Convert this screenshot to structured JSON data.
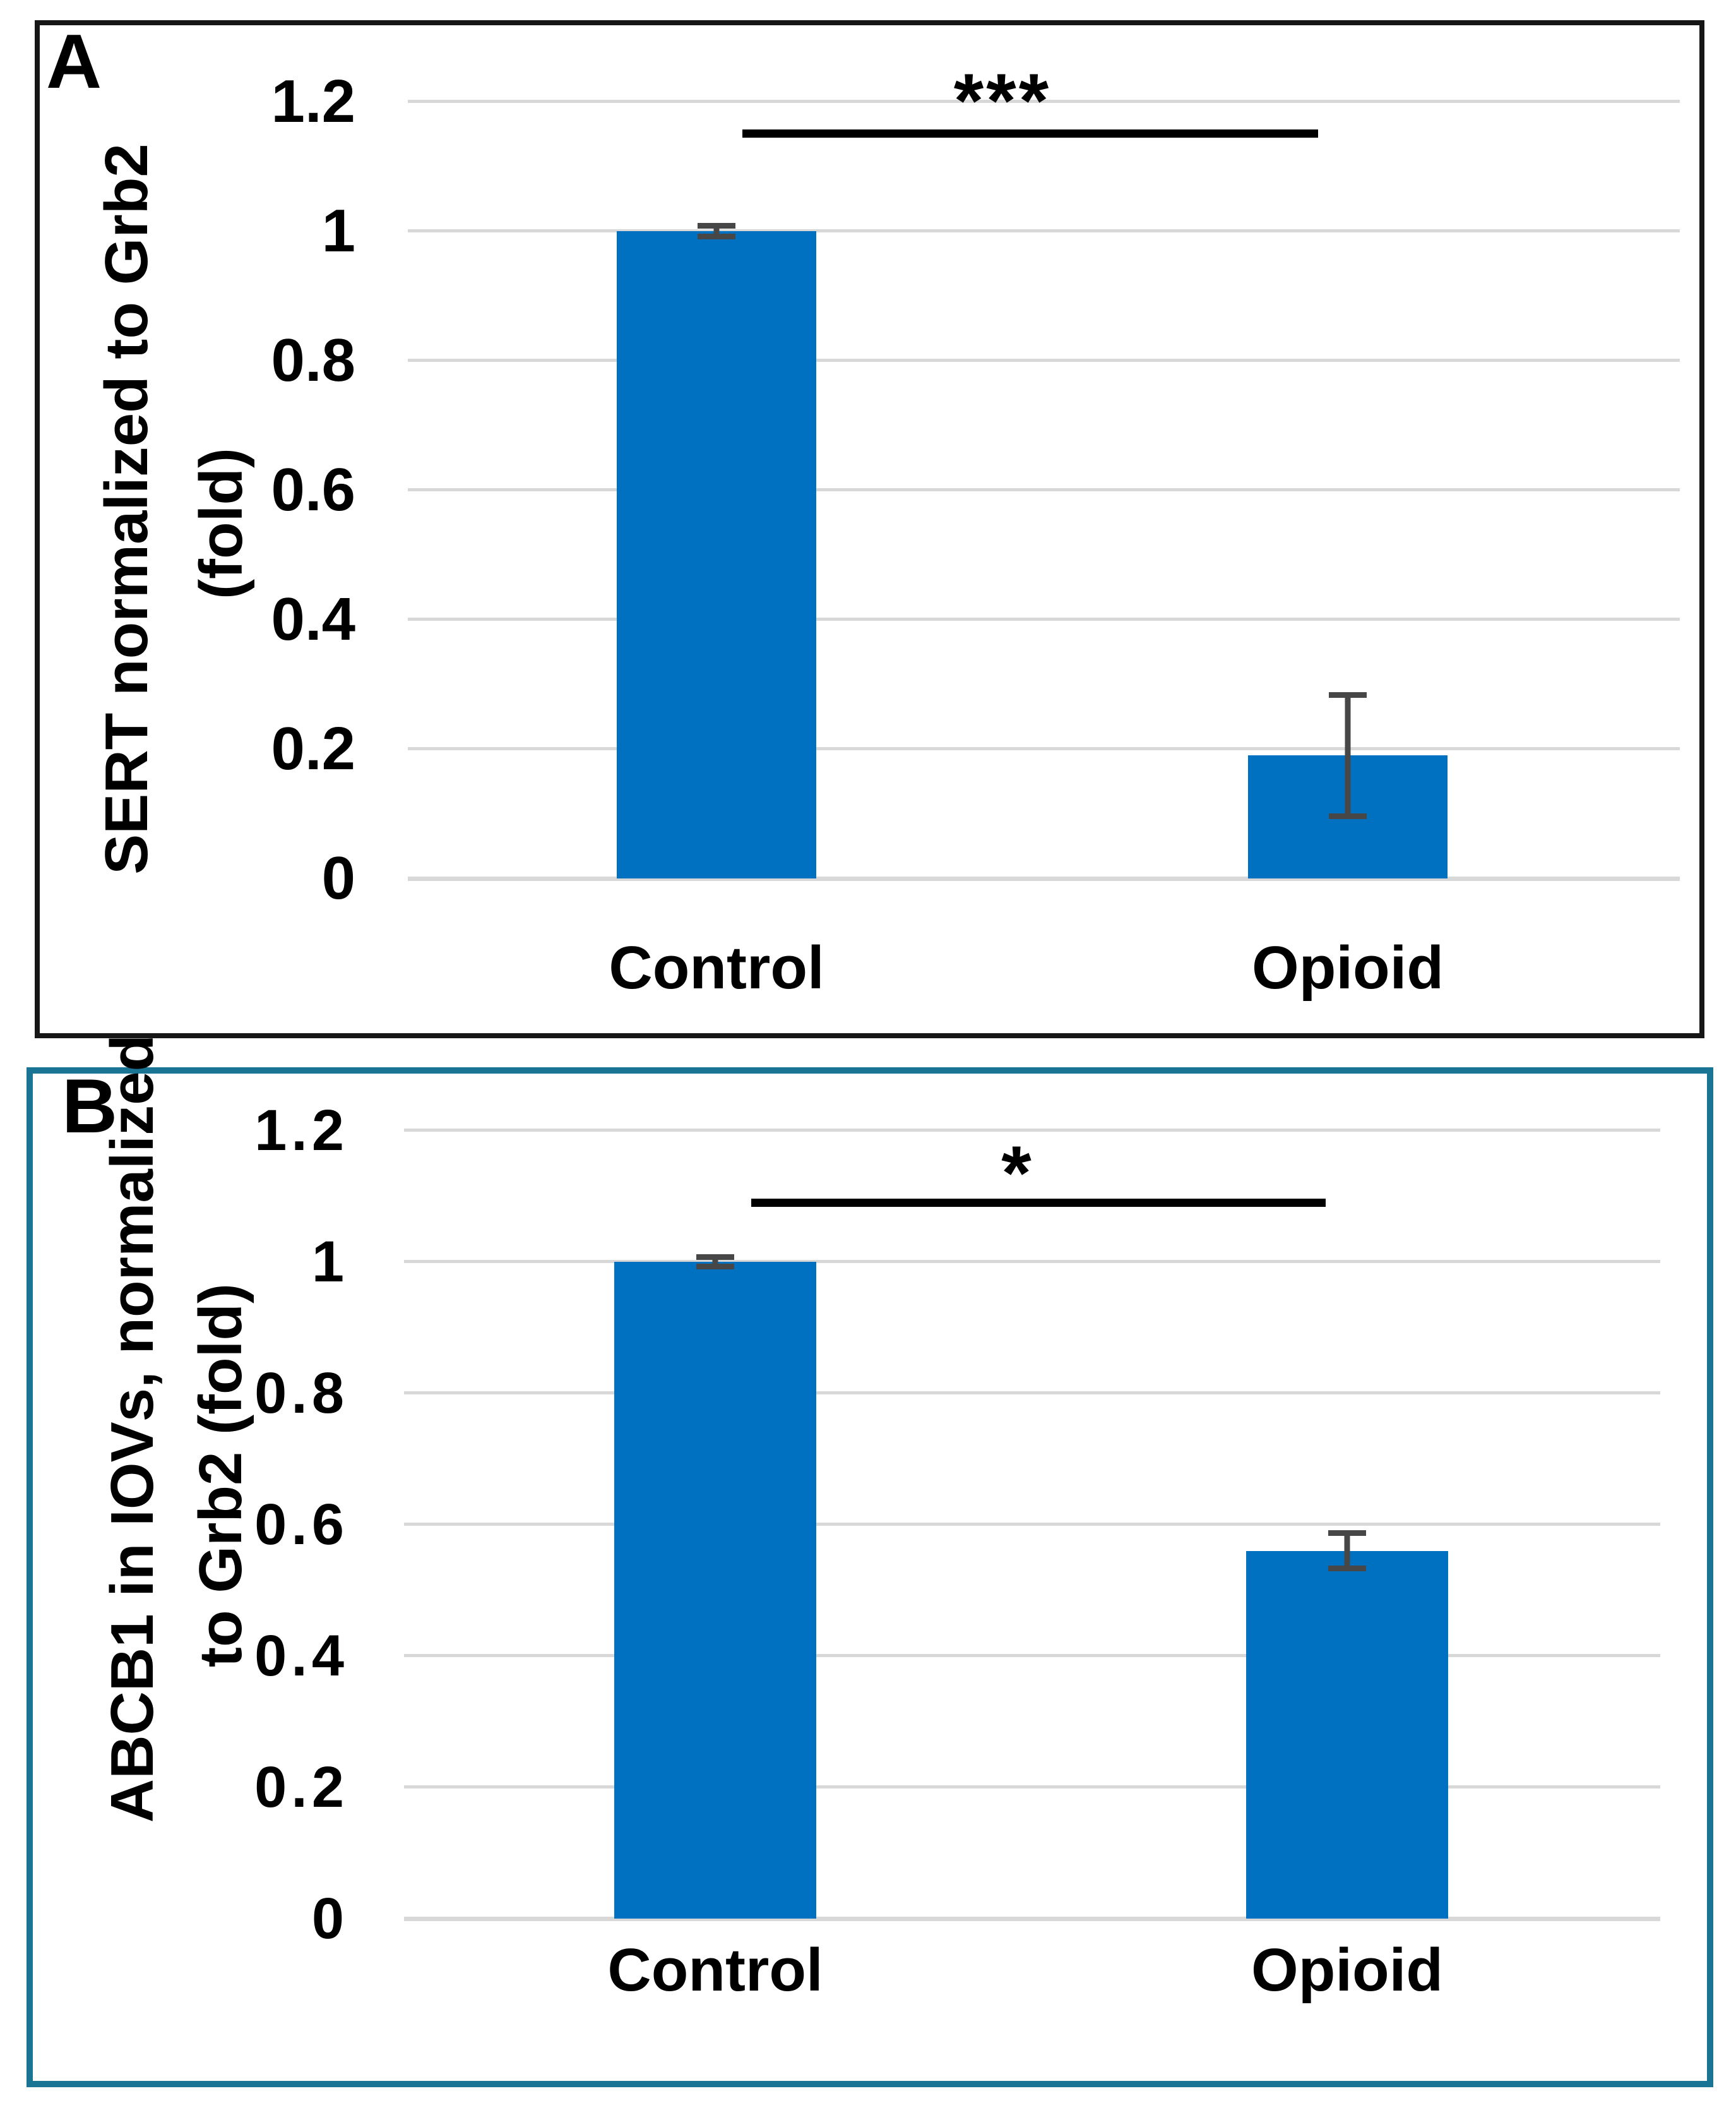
{
  "chart_data": [
    {
      "type": "bar",
      "panel_label": "A",
      "title": "",
      "ylabel_line1": "SERT normalized to Grb2",
      "ylabel_line2": "(fold)",
      "ylabel": "SERT normalized to Grb2 (fold)",
      "xlabel": "",
      "categories": [
        "Control",
        "Opioid"
      ],
      "values": [
        1.0,
        0.19
      ],
      "errors": [
        0.013,
        0.098
      ],
      "yticks": [
        1.2,
        1,
        0.8,
        0.6,
        0.4,
        0.2,
        0
      ],
      "ytick_labels": [
        "1.2",
        "1",
        "0.8",
        "0.6",
        "0.4",
        "0.2",
        "0"
      ],
      "ylim": [
        0,
        1.26
      ],
      "grid": true,
      "legend_position": "none",
      "bar_color": "#0070C0",
      "error_bar_color": "#474747",
      "gridline_color": "#D8D8D8",
      "panel_border_color": "#161616",
      "significance": {
        "text": "***",
        "between": [
          "Control",
          "Opioid"
        ]
      }
    },
    {
      "type": "bar",
      "panel_label": "B",
      "title": "",
      "ylabel_line1": "ABCB1 in IOVs, normalized",
      "ylabel_line2": "to Grb2 (fold)",
      "ylabel": "ABCB1 in IOVs, normalized to Grb2 (fold)",
      "xlabel": "",
      "categories": [
        "Control",
        "Opioid"
      ],
      "values": [
        1.0,
        0.56
      ],
      "errors": [
        0.012,
        0.031
      ],
      "yticks": [
        1.2,
        1,
        0.8,
        0.6,
        0.4,
        0.2,
        0
      ],
      "ytick_labels": [
        "1.2",
        "1",
        "0.8",
        "0.6",
        "0.4",
        "0.2",
        "0"
      ],
      "ylim": [
        0,
        1.26
      ],
      "grid": true,
      "legend_position": "none",
      "bar_color": "#0070C0",
      "error_bar_color": "#474747",
      "gridline_color": "#D8D8D8",
      "panel_border_color": "#1A7494",
      "significance": {
        "text": "*",
        "between": [
          "Control",
          "Opioid"
        ]
      }
    }
  ]
}
